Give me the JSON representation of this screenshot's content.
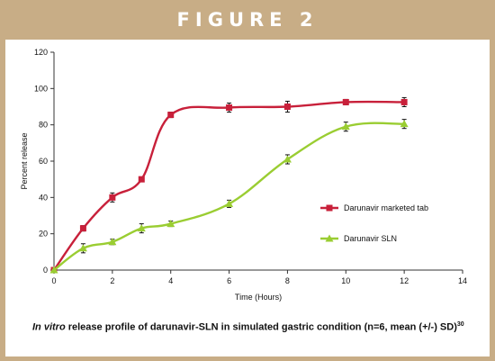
{
  "banner": {
    "title": "FIGURE 2"
  },
  "caption": {
    "italic": "In vitro",
    "text": " release profile of darunavir-SLN in simulated gastric condition (n=6, mean (+/-) SD)",
    "ref": "30"
  },
  "chart_data": {
    "type": "line",
    "title": "",
    "xlabel": "Time (Hours)",
    "ylabel": "Percent release",
    "xlim": [
      0,
      14
    ],
    "ylim": [
      0,
      120
    ],
    "xticks": [
      0,
      2,
      4,
      6,
      8,
      10,
      12,
      14
    ],
    "yticks": [
      0,
      20,
      40,
      60,
      80,
      100,
      120
    ],
    "grid": false,
    "legend_position": "right-middle",
    "series": [
      {
        "name": "Darunavir marketed tab",
        "color": "#c8203a",
        "marker": "square",
        "x": [
          0,
          1,
          2,
          3,
          4,
          6,
          8,
          10,
          12
        ],
        "y": [
          0,
          23,
          40,
          50,
          85.5,
          89.5,
          90,
          92.5,
          92.5
        ],
        "err": [
          0,
          1.5,
          2.5,
          1,
          1.5,
          2.5,
          3,
          1.5,
          2.5
        ]
      },
      {
        "name": "Darunavir SLN",
        "color": "#9acd32",
        "marker": "triangle",
        "x": [
          0,
          1,
          2,
          3,
          4,
          6,
          8,
          10,
          12
        ],
        "y": [
          0,
          12,
          15.5,
          23,
          25.5,
          36.5,
          61,
          79,
          80.5
        ],
        "err": [
          0,
          2.5,
          1.5,
          2.5,
          1.5,
          2,
          2.5,
          2.5,
          2.5
        ]
      }
    ]
  }
}
